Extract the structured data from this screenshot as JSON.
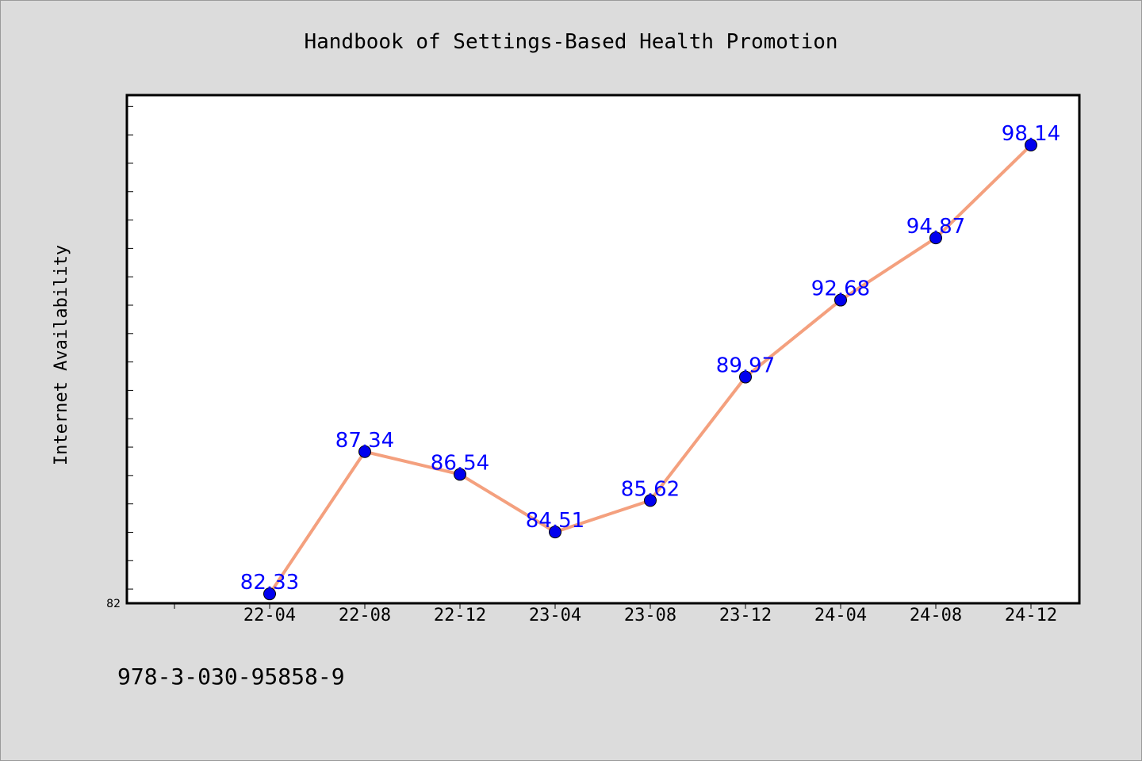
{
  "chart_data": {
    "type": "line",
    "title": "Handbook of Settings-Based Health Promotion",
    "ylabel": "Internet Availability",
    "xlabel": "",
    "categories": [
      "22-04",
      "22-08",
      "22-12",
      "23-04",
      "23-08",
      "23-12",
      "24-04",
      "24-08",
      "24-12"
    ],
    "series": [
      {
        "values": [
          82.33,
          87.34,
          86.54,
          84.51,
          85.62,
          89.97,
          92.68,
          94.87,
          98.14
        ],
        "labels": [
          "82.33",
          "87.34",
          "86.54",
          "84.51",
          "85.62",
          "89.97",
          "92.68",
          "94.87",
          "98.14"
        ],
        "line_color": "#f4a07e",
        "marker_color": "#0000ee",
        "label_color": "#0000ff"
      }
    ],
    "ylim": [
      82,
      99.9
    ],
    "ytick_labels": [
      "82"
    ],
    "grid": false
  },
  "footer": {
    "isbn": "978-3-030-95858-9"
  },
  "colors": {
    "background": "#dcdcdc",
    "plot_background": "#ffffff",
    "axis": "#000000"
  }
}
